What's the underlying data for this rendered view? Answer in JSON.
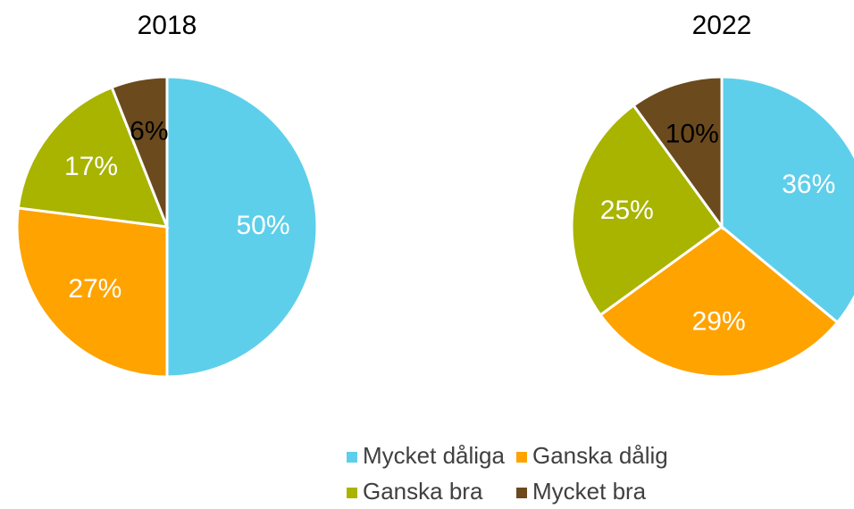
{
  "chart_data": [
    {
      "type": "pie",
      "title": "2018",
      "categories": [
        "Mycket dåliga",
        "Ganska dålig",
        "Ganska bra",
        "Mycket bra"
      ],
      "values": [
        50,
        27,
        17,
        6
      ],
      "value_labels": [
        "50%",
        "27%",
        "17%",
        "6%"
      ],
      "colors": [
        "#5ecfea",
        "#ffa300",
        "#a8b400",
        "#6b4a1e"
      ],
      "label_colors": [
        "#ffffff",
        "#ffffff",
        "#ffffff",
        "#000000"
      ]
    },
    {
      "type": "pie",
      "title": "2022",
      "categories": [
        "Mycket dåliga",
        "Ganska dålig",
        "Ganska bra",
        "Mycket bra"
      ],
      "values": [
        36,
        29,
        25,
        10
      ],
      "value_labels": [
        "36%",
        "29%",
        "25%",
        "10%"
      ],
      "colors": [
        "#5ecfea",
        "#ffa300",
        "#a8b400",
        "#6b4a1e"
      ],
      "label_colors": [
        "#ffffff",
        "#ffffff",
        "#ffffff",
        "#000000"
      ]
    }
  ]
}
